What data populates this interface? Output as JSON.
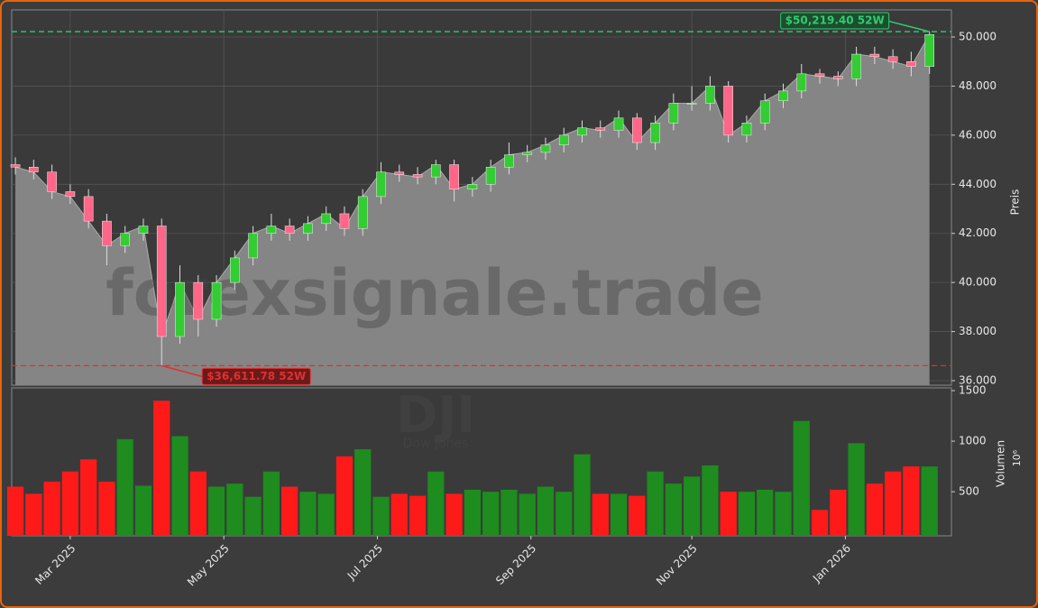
{
  "chart_data": {
    "type": "candlestick",
    "watermark": "forexsignale.trade",
    "symbol": "DJI",
    "symbol_name": "Dow Jones",
    "y_label": "Preis",
    "volume_label": "Volumen",
    "volume_unit": "10⁶",
    "grid": true,
    "up_color": "#33cc33",
    "down_color": "#ff6688",
    "volume_up_color": "#1e8c1e",
    "volume_down_color": "#ff1a1a",
    "area_color": "#858585",
    "x": [
      0,
      5,
      10,
      15,
      20,
      25,
      30,
      35,
      40,
      45,
      50,
      55,
      60,
      65,
      70,
      75,
      80,
      85,
      90,
      95,
      100,
      105,
      110,
      115,
      120,
      125,
      130,
      135,
      140,
      145,
      150,
      155,
      160,
      165,
      170,
      175,
      180,
      185,
      190,
      195,
      200,
      205,
      210,
      215,
      220,
      225,
      230,
      235,
      240,
      245,
      250
    ],
    "open": [
      44800,
      44700,
      44500,
      43700,
      43500,
      42500,
      41500,
      42000,
      42300,
      37800,
      40000,
      38500,
      40000,
      41000,
      42000,
      42300,
      42000,
      42400,
      42800,
      42200,
      43500,
      44500,
      44400,
      44300,
      44800,
      43800,
      44000,
      44700,
      45200,
      45300,
      45600,
      46000,
      46300,
      46200,
      46700,
      45700,
      46500,
      47300,
      47300,
      48000,
      46000,
      46500,
      47400,
      47800,
      48500,
      48400,
      48300,
      49300,
      49200,
      49000,
      48800
    ],
    "high": [
      45100,
      45000,
      44800,
      44000,
      43800,
      42800,
      42300,
      42600,
      42600,
      40700,
      40300,
      40300,
      41300,
      42300,
      42800,
      42600,
      42700,
      43100,
      43100,
      43800,
      44900,
      44800,
      44700,
      45000,
      45000,
      44300,
      45000,
      45700,
      45600,
      45900,
      46300,
      46600,
      46600,
      47000,
      46900,
      46800,
      47700,
      48000,
      48400,
      48200,
      46800,
      47700,
      48100,
      48900,
      48700,
      48600,
      49600,
      49600,
      49500,
      49400,
      50219.4
    ],
    "low": [
      44400,
      44200,
      43400,
      43200,
      42200,
      40700,
      41200,
      41700,
      36611.78,
      37500,
      37800,
      38200,
      39700,
      40700,
      41700,
      41700,
      41700,
      42100,
      41900,
      41900,
      43200,
      44100,
      44000,
      44000,
      43300,
      43500,
      43700,
      44400,
      44900,
      45000,
      45300,
      45700,
      45900,
      45900,
      45400,
      45400,
      46200,
      47000,
      47000,
      45700,
      45700,
      46200,
      47100,
      47500,
      48100,
      48000,
      48000,
      48900,
      48700,
      48400,
      48500
    ],
    "close": [
      44700,
      44500,
      43700,
      43500,
      42500,
      41500,
      42000,
      42300,
      37800,
      40000,
      38500,
      40000,
      41000,
      42000,
      42300,
      42000,
      42400,
      42800,
      42200,
      43500,
      44500,
      44400,
      44300,
      44800,
      43800,
      44000,
      44700,
      45200,
      45300,
      45600,
      46000,
      46300,
      46200,
      46700,
      45700,
      46500,
      47300,
      47300,
      48000,
      46000,
      46500,
      47400,
      47800,
      48500,
      48400,
      48300,
      49300,
      49200,
      49000,
      48800,
      50100
    ],
    "volume": [
      550,
      480,
      600,
      700,
      820,
      600,
      1020,
      560,
      1400,
      1050,
      700,
      550,
      580,
      450,
      700,
      550,
      500,
      480,
      850,
      920,
      450,
      480,
      460,
      700,
      480,
      520,
      500,
      520,
      480,
      550,
      500,
      870,
      480,
      480,
      460,
      700,
      580,
      650,
      760,
      500,
      500,
      520,
      500,
      1200,
      320,
      520,
      980,
      580,
      700,
      750,
      750
    ],
    "xlim": [
      -1,
      256
    ],
    "xticks": [
      {
        "value": 15,
        "label": "Mar 2025"
      },
      {
        "value": 57,
        "label": "May 2025"
      },
      {
        "value": 99,
        "label": "Jul 2025"
      },
      {
        "value": 141,
        "label": "Sep 2025"
      },
      {
        "value": 185,
        "label": "Nov 2025"
      },
      {
        "value": 227,
        "label": "Jan 2026"
      }
    ],
    "ylim": [
      35816,
      51103
    ],
    "yticks": [
      {
        "value": 36000,
        "label": "36.000"
      },
      {
        "value": 38000,
        "label": "38.000"
      },
      {
        "value": 40000,
        "label": "40.000"
      },
      {
        "value": 42000,
        "label": "42.000"
      },
      {
        "value": 44000,
        "label": "44.000"
      },
      {
        "value": 46000,
        "label": "46.000"
      },
      {
        "value": 48000,
        "label": "48.000"
      },
      {
        "value": 50000,
        "label": "50.000"
      }
    ],
    "volume_ylim": [
      64,
      1527
    ],
    "volume_yticks": [
      500,
      1000,
      1500
    ],
    "annotations": [
      {
        "value": 50219.4,
        "label": "$50,219.40 52W",
        "color": "#2ecc71"
      },
      {
        "value": 36611.78,
        "label": "$36,611.78 52W",
        "color": "#e03030"
      }
    ]
  }
}
